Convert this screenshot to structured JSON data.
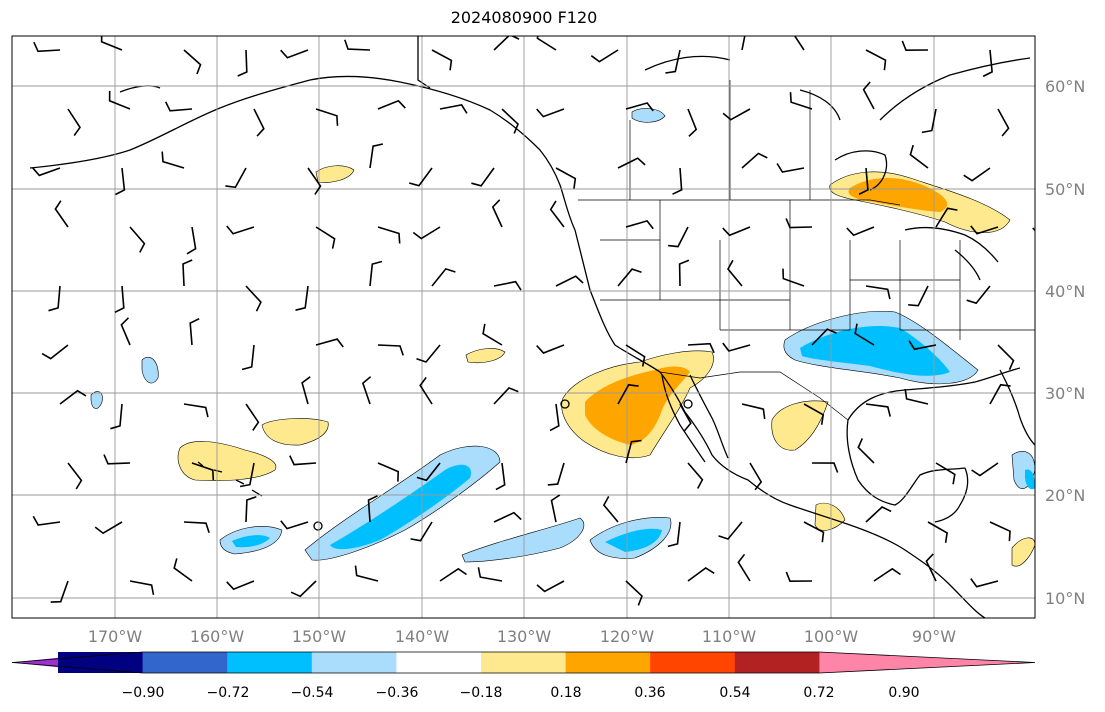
{
  "title": "2024080900 F120",
  "map": {
    "lon_range": [
      -180,
      -80
    ],
    "lat_range": [
      8,
      65
    ],
    "lon_labels": [
      "170°W",
      "160°W",
      "150°W",
      "140°W",
      "130°W",
      "120°W",
      "110°W",
      "100°W",
      "90°W"
    ],
    "lat_labels": [
      "10°N",
      "20°N",
      "30°N",
      "40°N",
      "50°N",
      "60°N"
    ],
    "gridlines": true,
    "wind_barbs": true
  },
  "colorbar": {
    "extend": "both",
    "tick_labels": [
      "−0.90",
      "−0.72",
      "−0.54",
      "−0.36",
      "−0.18",
      "0.18",
      "0.36",
      "0.54",
      "0.72",
      "0.90"
    ],
    "colors": [
      "#9933cc",
      "#000080",
      "#3366cc",
      "#00bfff",
      "#aadcfb",
      "#ffffff",
      "#ffe98f",
      "#ffa500",
      "#ff4500",
      "#b22222",
      "#ff85a8"
    ]
  }
}
